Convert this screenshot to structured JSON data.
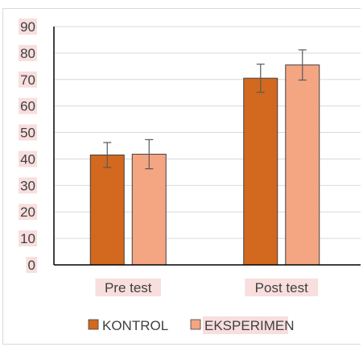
{
  "chart_data": {
    "type": "bar",
    "categories": [
      "Pre test",
      "Post test"
    ],
    "series": [
      {
        "name": "KONTROL",
        "values": [
          41.5,
          70.5
        ],
        "errors": [
          4.7,
          5.3
        ],
        "color": "#d2691e"
      },
      {
        "name": "EKSPERIMEN",
        "values": [
          41.8,
          75.5
        ],
        "errors": [
          5.5,
          5.7
        ],
        "color": "#f4a582"
      }
    ],
    "yticks": [
      "0",
      "10",
      "20",
      "30",
      "40",
      "50",
      "60",
      "70",
      "80",
      "90"
    ],
    "ylim": [
      0,
      90
    ],
    "grid": true,
    "legend_position": "bottom",
    "label_highlight": "#f9dede",
    "bar_stroke": "#404040",
    "axis_color": "#000000",
    "grid_color": "#d9d9d9"
  }
}
